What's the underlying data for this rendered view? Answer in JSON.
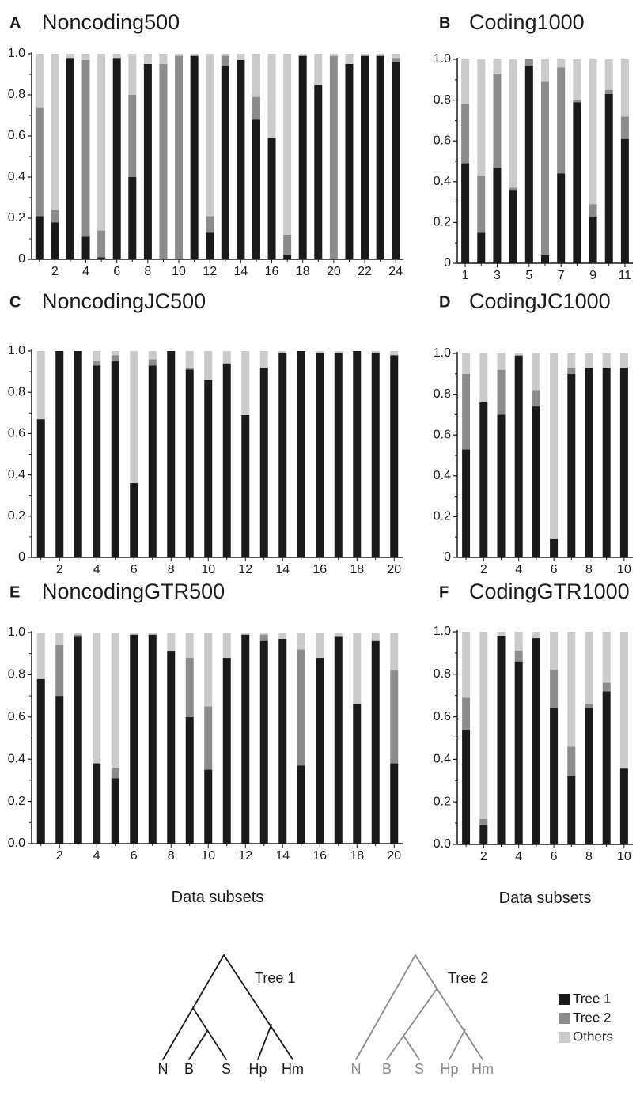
{
  "colors": {
    "tree1": "#1a1a1a",
    "tree2": "#8c8c8c",
    "others": "#cbcbcb",
    "axis": "#1a1a1a",
    "tree2_diagram": "#8a8a8a"
  },
  "chart_data": [
    {
      "letter": "A",
      "title": "Noncoding500",
      "type": "bar",
      "stacked": true,
      "ylim": [
        0,
        1
      ],
      "y_ticks": [
        "0",
        "0.2",
        "0.4",
        "0.6",
        "0.8",
        "1.0"
      ],
      "x": [
        1,
        2,
        3,
        4,
        5,
        6,
        7,
        8,
        9,
        10,
        11,
        12,
        13,
        14,
        15,
        16,
        17,
        18,
        19,
        20,
        21,
        22,
        23,
        24
      ],
      "x_tick_labels": [
        "2",
        "4",
        "6",
        "8",
        "10",
        "12",
        "14",
        "16",
        "18",
        "20",
        "22",
        "24"
      ],
      "xlabel": "",
      "series": [
        {
          "name": "Tree 1",
          "values": [
            0.21,
            0.18,
            0.98,
            0.11,
            0.01,
            0.98,
            0.4,
            0.95,
            0.0,
            0.0,
            0.99,
            0.13,
            0.94,
            0.97,
            0.68,
            0.59,
            0.02,
            0.99,
            0.85,
            0.0,
            0.95,
            0.99,
            0.99,
            0.96
          ]
        },
        {
          "name": "Tree 2",
          "values": [
            0.53,
            0.06,
            0.0,
            0.86,
            0.13,
            0.0,
            0.4,
            0.0,
            0.95,
            0.99,
            0.0,
            0.08,
            0.05,
            0.0,
            0.11,
            0.0,
            0.1,
            0.0,
            0.0,
            0.99,
            0.0,
            0.0,
            0.0,
            0.02
          ]
        },
        {
          "name": "Others",
          "values": [
            0.26,
            0.76,
            0.02,
            0.03,
            0.86,
            0.02,
            0.2,
            0.05,
            0.05,
            0.01,
            0.01,
            0.79,
            0.01,
            0.03,
            0.21,
            0.41,
            0.88,
            0.01,
            0.15,
            0.01,
            0.05,
            0.01,
            0.01,
            0.02
          ]
        }
      ]
    },
    {
      "letter": "B",
      "title": "Coding1000",
      "type": "bar",
      "stacked": true,
      "ylim": [
        0,
        1
      ],
      "y_ticks": [
        "0",
        "0.2",
        "0.4",
        "0.6",
        "0.8",
        "1.0"
      ],
      "x": [
        1,
        2,
        3,
        4,
        5,
        6,
        7,
        8,
        9,
        10,
        11
      ],
      "x_tick_labels": [
        "1",
        "3",
        "5",
        "7",
        "9",
        "11"
      ],
      "xlabel": "",
      "series": [
        {
          "name": "Tree 1",
          "values": [
            0.49,
            0.15,
            0.47,
            0.36,
            0.97,
            0.04,
            0.44,
            0.79,
            0.23,
            0.83,
            0.61
          ]
        },
        {
          "name": "Tree 2",
          "values": [
            0.29,
            0.28,
            0.46,
            0.01,
            0.03,
            0.85,
            0.52,
            0.01,
            0.06,
            0.02,
            0.11
          ]
        },
        {
          "name": "Others",
          "values": [
            0.22,
            0.57,
            0.07,
            0.63,
            0.0,
            0.11,
            0.04,
            0.2,
            0.71,
            0.15,
            0.28
          ]
        }
      ]
    },
    {
      "letter": "C",
      "title": "NoncodingJC500",
      "type": "bar",
      "stacked": true,
      "ylim": [
        0,
        1
      ],
      "y_ticks": [
        "0",
        "0.2",
        "0.4",
        "0.6",
        "0.8",
        "1.0"
      ],
      "x": [
        1,
        2,
        3,
        4,
        5,
        6,
        7,
        8,
        9,
        10,
        11,
        12,
        13,
        14,
        15,
        16,
        17,
        18,
        19,
        20
      ],
      "x_tick_labels": [
        "2",
        "4",
        "6",
        "8",
        "10",
        "12",
        "14",
        "16",
        "18",
        "20"
      ],
      "xlabel": "",
      "series": [
        {
          "name": "Tree 1",
          "values": [
            0.67,
            1.0,
            1.0,
            0.93,
            0.95,
            0.36,
            0.93,
            1.0,
            0.91,
            0.86,
            0.94,
            0.69,
            0.92,
            0.99,
            1.0,
            0.99,
            0.99,
            1.0,
            0.99,
            0.98
          ]
        },
        {
          "name": "Tree 2",
          "values": [
            0.0,
            0.0,
            0.0,
            0.02,
            0.03,
            0.0,
            0.03,
            0.0,
            0.01,
            0.0,
            0.0,
            0.0,
            0.0,
            0.0,
            0.0,
            0.0,
            0.0,
            0.0,
            0.0,
            0.0
          ]
        },
        {
          "name": "Others",
          "values": [
            0.33,
            0.0,
            0.0,
            0.05,
            0.02,
            0.64,
            0.04,
            0.0,
            0.08,
            0.14,
            0.06,
            0.31,
            0.08,
            0.01,
            0.0,
            0.01,
            0.01,
            0.0,
            0.01,
            0.02
          ]
        }
      ]
    },
    {
      "letter": "D",
      "title": "CodingJC1000",
      "type": "bar",
      "stacked": true,
      "ylim": [
        0,
        1
      ],
      "y_ticks": [
        "0",
        "0.2",
        "0.4",
        "0.6",
        "0.8",
        "1.0"
      ],
      "x": [
        1,
        2,
        3,
        4,
        5,
        6,
        7,
        8,
        9,
        10
      ],
      "x_tick_labels": [
        "2",
        "4",
        "6",
        "8",
        "10"
      ],
      "xlabel": "",
      "series": [
        {
          "name": "Tree 1",
          "values": [
            0.53,
            0.76,
            0.7,
            0.99,
            0.74,
            0.09,
            0.9,
            0.93,
            0.93,
            0.93
          ]
        },
        {
          "name": "Tree 2",
          "values": [
            0.37,
            0.0,
            0.22,
            0.0,
            0.08,
            0.0,
            0.03,
            0.0,
            0.0,
            0.0
          ]
        },
        {
          "name": "Others",
          "values": [
            0.1,
            0.24,
            0.08,
            0.01,
            0.18,
            0.91,
            0.07,
            0.07,
            0.07,
            0.07
          ]
        }
      ]
    },
    {
      "letter": "E",
      "title": "NoncodingGTR500",
      "type": "bar",
      "stacked": true,
      "ylim": [
        0,
        1
      ],
      "y_ticks": [
        "0.0",
        "0.2",
        "0.4",
        "0.6",
        "0.8",
        "1.0"
      ],
      "x": [
        1,
        2,
        3,
        4,
        5,
        6,
        7,
        8,
        9,
        10,
        11,
        12,
        13,
        14,
        15,
        16,
        17,
        18,
        19,
        20
      ],
      "x_tick_labels": [
        "2",
        "4",
        "6",
        "8",
        "10",
        "12",
        "14",
        "16",
        "18",
        "20"
      ],
      "xlabel": "Data subsets",
      "series": [
        {
          "name": "Tree 1",
          "values": [
            0.78,
            0.7,
            0.98,
            0.38,
            0.31,
            0.99,
            0.99,
            0.91,
            0.6,
            0.35,
            0.88,
            0.99,
            0.96,
            0.97,
            0.37,
            0.88,
            0.98,
            0.66,
            0.96,
            0.38
          ]
        },
        {
          "name": "Tree 2",
          "values": [
            0.0,
            0.24,
            0.01,
            0.0,
            0.05,
            0.0,
            0.0,
            0.0,
            0.28,
            0.3,
            0.0,
            0.0,
            0.03,
            0.0,
            0.55,
            0.0,
            0.0,
            0.0,
            0.0,
            0.44
          ]
        },
        {
          "name": "Others",
          "values": [
            0.22,
            0.06,
            0.01,
            0.62,
            0.64,
            0.01,
            0.01,
            0.09,
            0.12,
            0.35,
            0.12,
            0.01,
            0.01,
            0.03,
            0.08,
            0.12,
            0.02,
            0.34,
            0.04,
            0.18
          ]
        }
      ]
    },
    {
      "letter": "F",
      "title": "CodingGTR1000",
      "type": "bar",
      "stacked": true,
      "ylim": [
        0,
        1
      ],
      "y_ticks": [
        "0.0",
        "0.2",
        "0.4",
        "0.6",
        "0.8",
        "1.0"
      ],
      "x": [
        1,
        2,
        3,
        4,
        5,
        6,
        7,
        8,
        9,
        10
      ],
      "x_tick_labels": [
        "2",
        "4",
        "6",
        "8",
        "10"
      ],
      "xlabel": "Data subsets",
      "series": [
        {
          "name": "Tree 1",
          "values": [
            0.54,
            0.09,
            0.98,
            0.86,
            0.97,
            0.64,
            0.32,
            0.64,
            0.72,
            0.36
          ]
        },
        {
          "name": "Tree 2",
          "values": [
            0.15,
            0.03,
            0.0,
            0.05,
            0.0,
            0.18,
            0.14,
            0.02,
            0.04,
            0.0
          ]
        },
        {
          "name": "Others",
          "values": [
            0.31,
            0.88,
            0.02,
            0.09,
            0.03,
            0.18,
            0.54,
            0.34,
            0.24,
            0.64
          ]
        }
      ]
    }
  ],
  "legend": [
    {
      "label": "Tree 1",
      "key": "tree1"
    },
    {
      "label": "Tree 2",
      "key": "tree2"
    },
    {
      "label": "Others",
      "key": "others"
    }
  ],
  "trees": [
    {
      "label": "Tree 1",
      "taxa": [
        "N",
        "B",
        "S",
        "Hp",
        "Hm"
      ],
      "topology": "(N,(B,S)),(Hp,Hm)"
    },
    {
      "label": "Tree 2",
      "taxa": [
        "N",
        "B",
        "S",
        "Hp",
        "Hm"
      ],
      "topology": "(N,((B,S),(Hp,Hm)))"
    }
  ]
}
